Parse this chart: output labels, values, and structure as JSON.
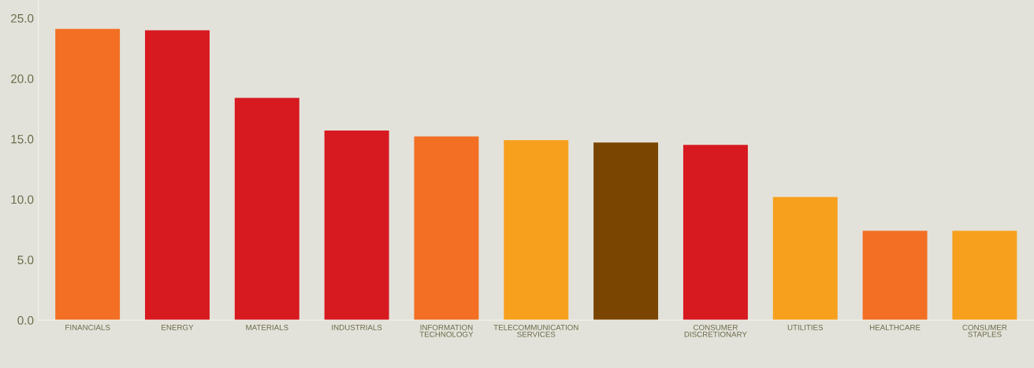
{
  "chart_data": {
    "type": "bar",
    "categories": [
      "FINANCIALS",
      "ENERGY",
      "MATERIALS",
      "INDUSTRIALS",
      "INFORMATION\nTECHNOLOGY",
      "TELECOMMUNICATION\nSERVICES",
      null,
      "CONSUMER\nDISCRETIONARY",
      "UTILITIES",
      "HEALTHCARE",
      "CONSUMER\nSTAPLES"
    ],
    "values": [
      24.1,
      24.0,
      18.4,
      15.7,
      15.2,
      14.9,
      14.7,
      14.5,
      10.2,
      7.4,
      7.4
    ],
    "colors": [
      "#f26f23",
      "#d71920",
      "#d71920",
      "#d71920",
      "#f26f23",
      "#f7a01d",
      "#7a4500",
      "#d71920",
      "#f7a01d",
      "#f26f23",
      "#f7a01d"
    ],
    "ylim": [
      0,
      26.5
    ],
    "yticks": [
      {
        "value": 0,
        "label": "0.0"
      },
      {
        "value": 5,
        "label": "5.0"
      },
      {
        "value": 10,
        "label": "10.0"
      },
      {
        "value": 15,
        "label": "15.0"
      },
      {
        "value": 20,
        "label": "20.0"
      },
      {
        "value": 25,
        "label": "25.0"
      }
    ],
    "grid": false,
    "legend": false
  }
}
